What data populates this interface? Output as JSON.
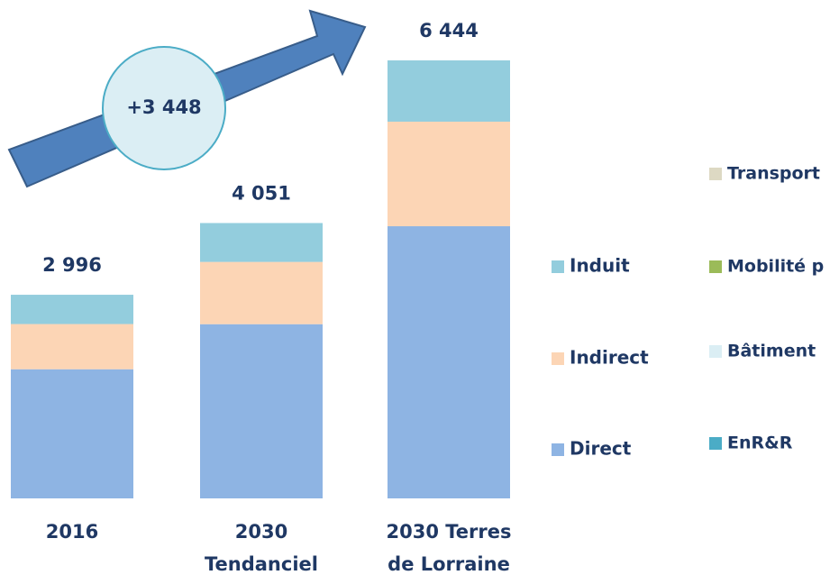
{
  "chart_data": {
    "type": "stacked-bar",
    "categories": [
      "2016",
      "2030 Tendanciel",
      "2030 Terres de Lorraine"
    ],
    "series": [
      {
        "name": "Direct",
        "color": "#8eb4e3",
        "values": [
          1900,
          2563,
          4004
        ]
      },
      {
        "name": "Indirect",
        "color": "#fcd5b5",
        "values": [
          665,
          916,
          1538
        ]
      },
      {
        "name": "Induit",
        "color": "#93cddd",
        "values": [
          431,
          572,
          902
        ]
      }
    ],
    "totals": [
      2996,
      4051,
      6444
    ],
    "total_labels": [
      "2 996",
      "4 051",
      "6 444"
    ],
    "annotation": "+3 448",
    "other_legend": [
      {
        "name": "Transport",
        "color": "#ddd9c3"
      },
      {
        "name": "Mobilité p",
        "color": "#9bbb59"
      },
      {
        "name": "Bâtiment",
        "color": "#dbeef4"
      },
      {
        "name": "EnR&R",
        "color": "#4bacc6"
      }
    ]
  }
}
